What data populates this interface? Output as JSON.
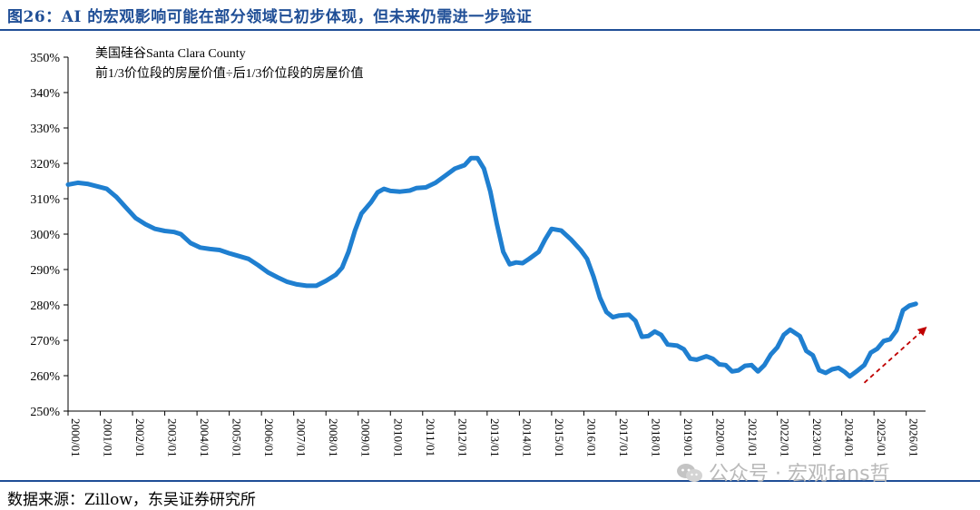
{
  "figure_title": "图26：AI 的宏观影响可能在部分领域已初步体现，但未来仍需进一步验证",
  "source_note": "数据来源：Zillow，东吴证券研究所",
  "watermark": "公众号 · 宏观fans哲",
  "colors": {
    "line": "#1f7fd0",
    "arrow": "#c00000",
    "title": "#1f4e96"
  },
  "chart_data": {
    "type": "line",
    "annotation_lines": [
      "美国硅谷Santa Clara County",
      "前1/3价位段的房屋价值÷后1/3价位段的房屋价值"
    ],
    "ylim": [
      250,
      350
    ],
    "yticks": [
      250,
      260,
      270,
      280,
      290,
      300,
      310,
      320,
      330,
      340,
      350
    ],
    "ytick_labels": [
      "250%",
      "260%",
      "270%",
      "280%",
      "290%",
      "300%",
      "310%",
      "320%",
      "330%",
      "340%",
      "350%"
    ],
    "xlim": [
      2000.0,
      2026.6
    ],
    "xticks": [
      2000,
      2001,
      2002,
      2003,
      2004,
      2005,
      2006,
      2007,
      2008,
      2009,
      2010,
      2011,
      2012,
      2013,
      2014,
      2015,
      2016,
      2017,
      2018,
      2019,
      2020,
      2021,
      2022,
      2023,
      2024,
      2025,
      2026
    ],
    "xtick_labels": [
      "2000/01",
      "2001/01",
      "2002/01",
      "2003/01",
      "2004/01",
      "2005/01",
      "2006/01",
      "2007/01",
      "2008/01",
      "2009/01",
      "2010/01",
      "2011/01",
      "2012/01",
      "2013/01",
      "2014/01",
      "2015/01",
      "2016/01",
      "2017/01",
      "2018/01",
      "2019/01",
      "2020/01",
      "2021/01",
      "2022/01",
      "2023/01",
      "2024/01",
      "2025/01",
      "2026/01"
    ],
    "trend_arrow": {
      "from": [
        2024.7,
        258
      ],
      "to": [
        2026.6,
        273.5
      ]
    },
    "series": [
      {
        "points": [
          [
            2000.0,
            314.0
          ],
          [
            2000.3,
            314.5
          ],
          [
            2000.6,
            314.2
          ],
          [
            2000.9,
            313.5
          ],
          [
            2001.2,
            312.8
          ],
          [
            2001.5,
            310.5
          ],
          [
            2001.8,
            307.5
          ],
          [
            2002.1,
            304.5
          ],
          [
            2002.4,
            302.8
          ],
          [
            2002.7,
            301.5
          ],
          [
            2003.0,
            300.9
          ],
          [
            2003.3,
            300.6
          ],
          [
            2003.5,
            300.0
          ],
          [
            2003.8,
            297.5
          ],
          [
            2004.1,
            296.2
          ],
          [
            2004.4,
            295.8
          ],
          [
            2004.7,
            295.5
          ],
          [
            2005.0,
            294.6
          ],
          [
            2005.3,
            293.8
          ],
          [
            2005.6,
            293.0
          ],
          [
            2005.9,
            291.2
          ],
          [
            2006.2,
            289.2
          ],
          [
            2006.5,
            287.8
          ],
          [
            2006.8,
            286.5
          ],
          [
            2007.1,
            285.8
          ],
          [
            2007.4,
            285.4
          ],
          [
            2007.7,
            285.4
          ],
          [
            2008.0,
            286.8
          ],
          [
            2008.3,
            288.5
          ],
          [
            2008.5,
            290.5
          ],
          [
            2008.7,
            295.0
          ],
          [
            2008.9,
            301.0
          ],
          [
            2009.1,
            305.8
          ],
          [
            2009.4,
            309.0
          ],
          [
            2009.6,
            311.8
          ],
          [
            2009.8,
            312.8
          ],
          [
            2010.0,
            312.2
          ],
          [
            2010.3,
            312.0
          ],
          [
            2010.6,
            312.3
          ],
          [
            2010.8,
            313.0
          ],
          [
            2011.1,
            313.2
          ],
          [
            2011.4,
            314.5
          ],
          [
            2011.7,
            316.5
          ],
          [
            2012.0,
            318.5
          ],
          [
            2012.3,
            319.5
          ],
          [
            2012.5,
            321.5
          ],
          [
            2012.7,
            321.5
          ],
          [
            2012.9,
            318.5
          ],
          [
            2013.1,
            312.0
          ],
          [
            2013.3,
            303.0
          ],
          [
            2013.5,
            295.0
          ],
          [
            2013.7,
            291.5
          ],
          [
            2013.9,
            292.0
          ],
          [
            2014.1,
            291.8
          ],
          [
            2014.3,
            293.0
          ],
          [
            2014.6,
            295.0
          ],
          [
            2014.8,
            298.5
          ],
          [
            2015.0,
            301.5
          ],
          [
            2015.3,
            301.0
          ],
          [
            2015.6,
            298.5
          ],
          [
            2015.9,
            295.5
          ],
          [
            2016.1,
            293.0
          ],
          [
            2016.3,
            288.0
          ],
          [
            2016.5,
            282.0
          ],
          [
            2016.7,
            278.0
          ],
          [
            2016.9,
            276.5
          ],
          [
            2017.1,
            277.0
          ],
          [
            2017.4,
            277.2
          ],
          [
            2017.6,
            275.5
          ],
          [
            2017.8,
            271.0
          ],
          [
            2018.0,
            271.2
          ],
          [
            2018.2,
            272.5
          ],
          [
            2018.4,
            271.5
          ],
          [
            2018.6,
            268.8
          ],
          [
            2018.9,
            268.5
          ],
          [
            2019.1,
            267.5
          ],
          [
            2019.3,
            264.8
          ],
          [
            2019.5,
            264.5
          ],
          [
            2019.8,
            265.5
          ],
          [
            2020.0,
            264.8
          ],
          [
            2020.2,
            263.2
          ],
          [
            2020.4,
            263.0
          ],
          [
            2020.6,
            261.2
          ],
          [
            2020.8,
            261.5
          ],
          [
            2021.0,
            262.8
          ],
          [
            2021.2,
            263.0
          ],
          [
            2021.4,
            261.2
          ],
          [
            2021.6,
            263.0
          ],
          [
            2021.8,
            266.0
          ],
          [
            2022.0,
            268.0
          ],
          [
            2022.2,
            271.5
          ],
          [
            2022.4,
            273.0
          ],
          [
            2022.7,
            271.2
          ],
          [
            2022.9,
            267.0
          ],
          [
            2023.1,
            265.8
          ],
          [
            2023.3,
            261.5
          ],
          [
            2023.5,
            260.8
          ],
          [
            2023.7,
            261.8
          ],
          [
            2023.9,
            262.2
          ],
          [
            2024.1,
            261.0
          ],
          [
            2024.25,
            259.8
          ],
          [
            2024.5,
            261.5
          ],
          [
            2024.7,
            263.0
          ],
          [
            2024.9,
            266.5
          ],
          [
            2025.1,
            267.6
          ],
          [
            2025.3,
            269.8
          ],
          [
            2025.5,
            270.3
          ],
          [
            2025.7,
            272.8
          ],
          [
            2025.9,
            278.5
          ],
          [
            2026.1,
            279.8
          ],
          [
            2026.3,
            280.3
          ]
        ]
      }
    ]
  }
}
